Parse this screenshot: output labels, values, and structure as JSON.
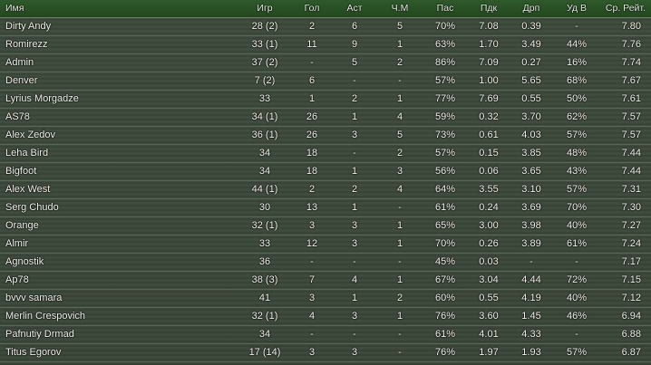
{
  "headers": [
    "Имя",
    "Игр",
    "Гол",
    "Аст",
    "Ч.М",
    "Пас",
    "Пдк",
    "Дрп",
    "Уд В",
    "Ср. Рейт."
  ],
  "rows": [
    [
      "Dirty Andy",
      "28 (2)",
      "2",
      "6",
      "5",
      "70%",
      "7.08",
      "0.39",
      "-",
      "7.80"
    ],
    [
      "Romirezz",
      "33 (1)",
      "11",
      "9",
      "1",
      "63%",
      "1.70",
      "3.49",
      "44%",
      "7.76"
    ],
    [
      "Admin",
      "37 (2)",
      "-",
      "5",
      "2",
      "86%",
      "7.09",
      "0.27",
      "16%",
      "7.74"
    ],
    [
      "Denver",
      "7 (2)",
      "6",
      "-",
      "-",
      "57%",
      "1.00",
      "5.65",
      "68%",
      "7.67"
    ],
    [
      "Lyrius Morgadze",
      "33",
      "1",
      "2",
      "1",
      "77%",
      "7.69",
      "0.55",
      "50%",
      "7.61"
    ],
    [
      "AS78",
      "34 (1)",
      "26",
      "1",
      "4",
      "59%",
      "0.32",
      "3.70",
      "62%",
      "7.57"
    ],
    [
      "Alex Zedov",
      "36 (1)",
      "26",
      "3",
      "5",
      "73%",
      "0.61",
      "4.03",
      "57%",
      "7.57"
    ],
    [
      "Leha Bird",
      "34",
      "18",
      "-",
      "2",
      "57%",
      "0.15",
      "3.85",
      "48%",
      "7.44"
    ],
    [
      "Bigfoot",
      "34",
      "18",
      "1",
      "3",
      "56%",
      "0.06",
      "3.65",
      "43%",
      "7.44"
    ],
    [
      "Alex West",
      "44 (1)",
      "2",
      "2",
      "4",
      "64%",
      "3.55",
      "3.10",
      "57%",
      "7.31"
    ],
    [
      "Serg Chudo",
      "30",
      "13",
      "1",
      "-",
      "61%",
      "0.24",
      "3.69",
      "70%",
      "7.30"
    ],
    [
      "Orange",
      "32 (1)",
      "3",
      "3",
      "1",
      "65%",
      "3.00",
      "3.98",
      "40%",
      "7.27"
    ],
    [
      "Almir",
      "33",
      "12",
      "3",
      "1",
      "70%",
      "0.26",
      "3.89",
      "61%",
      "7.24"
    ],
    [
      "Agnostik",
      "36",
      "-",
      "-",
      "-",
      "45%",
      "0.03",
      "-",
      "-",
      "7.17"
    ],
    [
      "Ap78",
      "38 (3)",
      "7",
      "4",
      "1",
      "67%",
      "3.04",
      "4.44",
      "72%",
      "7.15"
    ],
    [
      "bvvv samara",
      "41",
      "3",
      "1",
      "2",
      "60%",
      "0.55",
      "4.19",
      "40%",
      "7.12"
    ],
    [
      "Merlin Crespovich",
      "32 (1)",
      "4",
      "3",
      "1",
      "76%",
      "3.60",
      "1.45",
      "46%",
      "6.94"
    ],
    [
      "Pafnutiy Drmad",
      "34",
      "-",
      "-",
      "-",
      "61%",
      "4.01",
      "4.33",
      "-",
      "6.88"
    ],
    [
      "Titus Egorov",
      "17 (14)",
      "3",
      "3",
      "-",
      "76%",
      "1.97",
      "1.93",
      "57%",
      "6.87"
    ]
  ],
  "colors": {
    "header_bg": "#2a5026",
    "row_bg": "#3a4638",
    "text": "#f2f2ea"
  }
}
